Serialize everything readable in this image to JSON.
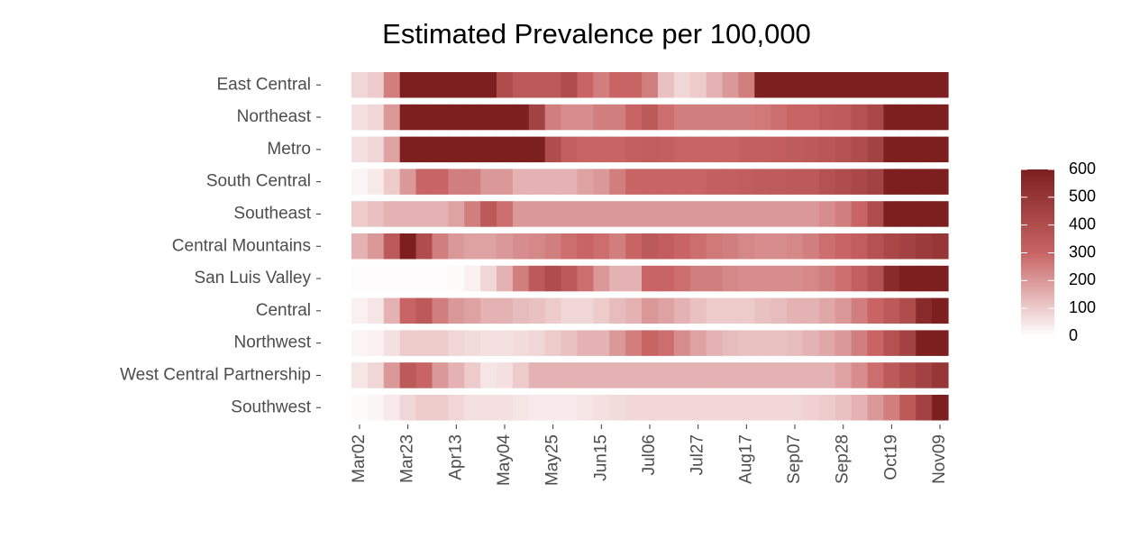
{
  "chart_data": {
    "type": "heatmap",
    "title": "Estimated Prevalence per 100,000",
    "categories": [
      "Mar02",
      null,
      null,
      "Mar23",
      null,
      null,
      "Apr13",
      null,
      null,
      "May04",
      null,
      null,
      "May25",
      null,
      null,
      "Jun15",
      null,
      null,
      "Jul06",
      null,
      null,
      "Jul27",
      null,
      null,
      "Aug17",
      null,
      null,
      "Sep07",
      null,
      null,
      "Sep28",
      null,
      null,
      "Oct19",
      null,
      null,
      "Nov09"
    ],
    "series": [
      {
        "name": "East Central",
        "values": [
          80,
          100,
          250,
          600,
          600,
          600,
          600,
          600,
          600,
          400,
          350,
          350,
          350,
          400,
          300,
          250,
          300,
          300,
          250,
          120,
          80,
          100,
          150,
          200,
          250,
          600,
          600,
          600,
          600,
          600,
          600,
          600,
          600,
          600,
          600,
          600,
          600
        ]
      },
      {
        "name": "Northeast",
        "values": [
          60,
          80,
          200,
          600,
          600,
          600,
          600,
          600,
          600,
          600,
          600,
          450,
          250,
          220,
          220,
          250,
          250,
          300,
          350,
          280,
          250,
          250,
          250,
          250,
          250,
          260,
          280,
          300,
          300,
          330,
          340,
          380,
          420,
          600,
          600,
          600,
          600
        ]
      },
      {
        "name": "Metro",
        "values": [
          60,
          80,
          180,
          600,
          600,
          600,
          600,
          600,
          600,
          600,
          600,
          600,
          400,
          320,
          300,
          300,
          300,
          320,
          330,
          320,
          300,
          300,
          300,
          300,
          320,
          320,
          330,
          340,
          350,
          360,
          380,
          400,
          450,
          600,
          600,
          600,
          600
        ]
      },
      {
        "name": "South Central",
        "values": [
          20,
          40,
          100,
          200,
          300,
          300,
          250,
          250,
          200,
          200,
          150,
          150,
          150,
          150,
          180,
          200,
          250,
          300,
          300,
          300,
          300,
          300,
          320,
          320,
          330,
          340,
          340,
          350,
          350,
          380,
          400,
          420,
          450,
          600,
          600,
          600,
          600
        ]
      },
      {
        "name": "Southeast",
        "values": [
          100,
          120,
          150,
          150,
          150,
          150,
          180,
          250,
          350,
          280,
          200,
          200,
          200,
          200,
          200,
          200,
          200,
          200,
          200,
          200,
          200,
          200,
          200,
          200,
          200,
          200,
          200,
          200,
          200,
          220,
          250,
          300,
          400,
          600,
          600,
          600,
          600
        ]
      },
      {
        "name": "Central Mountains",
        "values": [
          150,
          200,
          350,
          600,
          400,
          250,
          200,
          180,
          180,
          200,
          220,
          230,
          250,
          280,
          300,
          280,
          250,
          300,
          350,
          330,
          300,
          280,
          260,
          250,
          230,
          220,
          220,
          230,
          250,
          280,
          300,
          330,
          380,
          420,
          450,
          480,
          500
        ]
      },
      {
        "name": "San Luis Valley",
        "values": [
          5,
          5,
          5,
          5,
          5,
          5,
          10,
          30,
          80,
          150,
          250,
          350,
          400,
          350,
          280,
          200,
          150,
          150,
          300,
          300,
          280,
          250,
          250,
          230,
          220,
          220,
          220,
          220,
          230,
          250,
          280,
          320,
          380,
          550,
          600,
          600,
          600
        ]
      },
      {
        "name": "Central",
        "values": [
          30,
          50,
          150,
          300,
          350,
          250,
          200,
          180,
          150,
          150,
          130,
          120,
          100,
          80,
          80,
          100,
          130,
          150,
          200,
          180,
          150,
          120,
          100,
          100,
          100,
          120,
          130,
          150,
          150,
          170,
          200,
          250,
          300,
          350,
          400,
          550,
          600
        ]
      },
      {
        "name": "Northwest",
        "values": [
          20,
          30,
          60,
          100,
          100,
          100,
          80,
          70,
          60,
          60,
          70,
          80,
          100,
          120,
          150,
          150,
          200,
          250,
          300,
          280,
          220,
          180,
          150,
          130,
          120,
          120,
          120,
          130,
          150,
          170,
          200,
          250,
          300,
          380,
          450,
          600,
          600
        ]
      },
      {
        "name": "West Central Partnership",
        "values": [
          50,
          80,
          200,
          350,
          300,
          200,
          150,
          100,
          50,
          60,
          100,
          150,
          150,
          150,
          150,
          150,
          150,
          150,
          150,
          150,
          150,
          150,
          150,
          150,
          150,
          150,
          150,
          150,
          150,
          150,
          180,
          220,
          280,
          350,
          400,
          450,
          500
        ]
      },
      {
        "name": "Southwest",
        "values": [
          10,
          20,
          40,
          80,
          100,
          100,
          80,
          60,
          60,
          60,
          50,
          40,
          40,
          40,
          50,
          60,
          70,
          80,
          80,
          80,
          80,
          80,
          80,
          80,
          80,
          80,
          80,
          80,
          90,
          100,
          120,
          150,
          200,
          250,
          350,
          450,
          600
        ]
      }
    ],
    "colors": [
      "#ffffff",
      "#c86464",
      "#7e1f1f"
    ],
    "clim": [
      0,
      600
    ],
    "cticks": [
      0,
      100,
      200,
      300,
      400,
      500,
      600
    ]
  }
}
